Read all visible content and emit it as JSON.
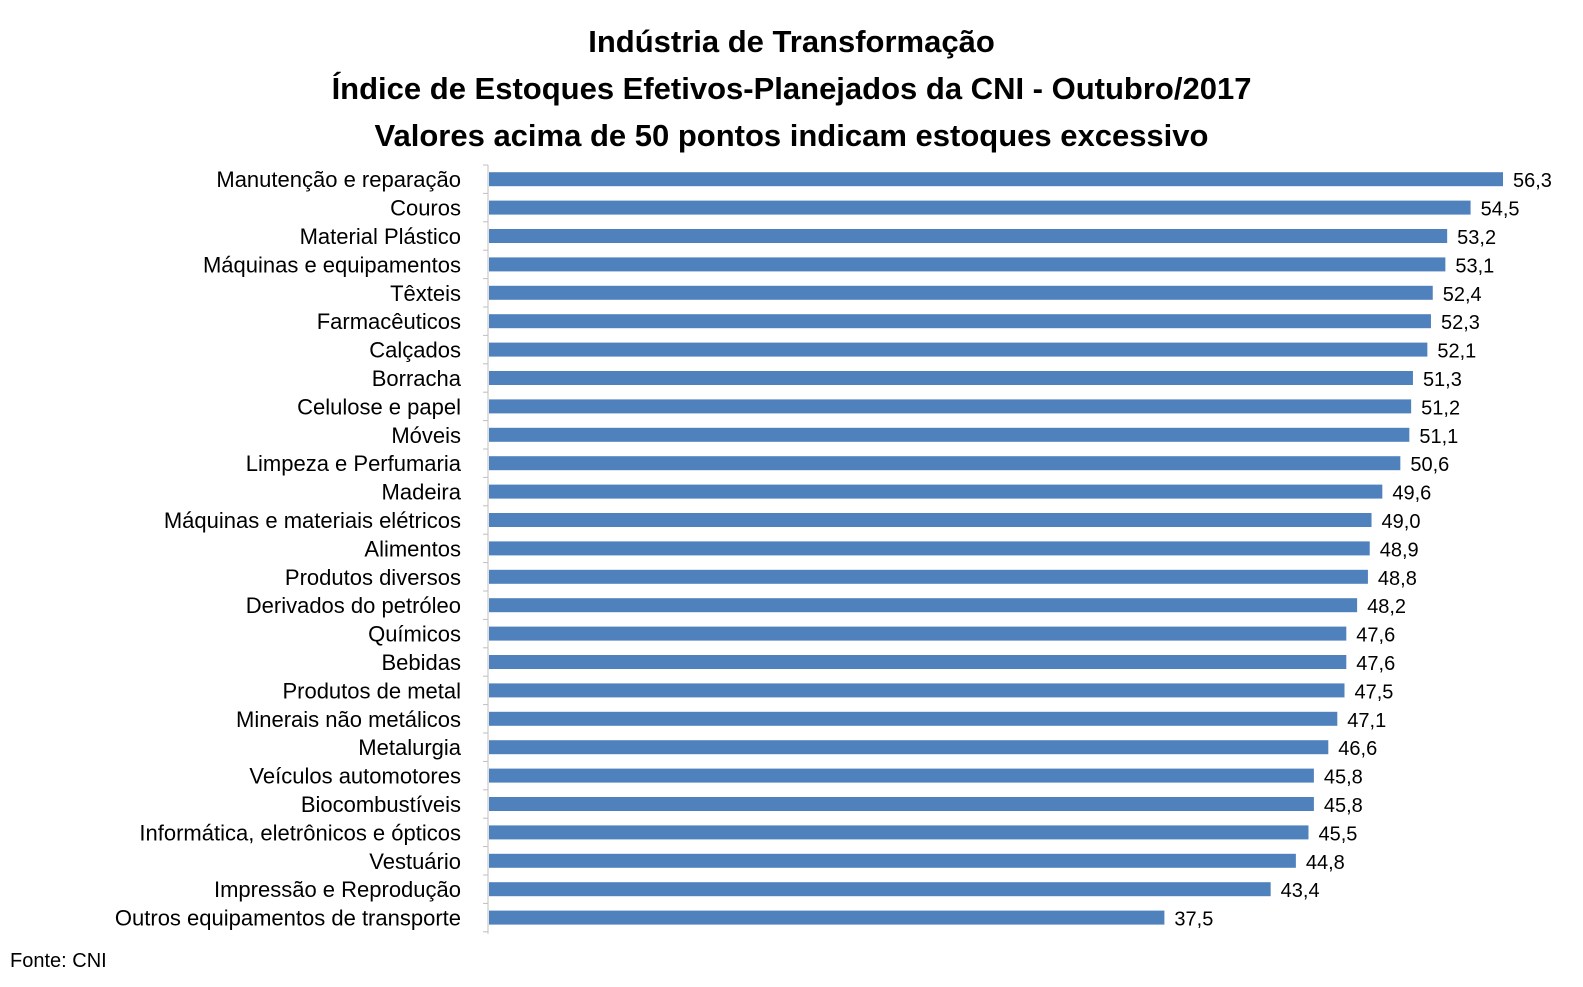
{
  "title_lines": [
    "Indústria de Transformação",
    "Índice de Estoques Efetivos-Planejados da CNI - Outubro/2017",
    "Valores acima de 50 pontos indicam estoques excessivo"
  ],
  "source": "Fonte: CNI",
  "colors": {
    "bar": "#4F81BD",
    "axis": "#BFBFBF",
    "text": "#000000"
  },
  "chart_data": {
    "type": "bar",
    "orientation": "horizontal",
    "title": "Indústria de Transformação / Índice de Estoques Efetivos-Planejados da CNI - Outubro/2017 / Valores acima de 50 pontos indicam estoques excessivo",
    "xlabel": "",
    "ylabel": "",
    "grid": false,
    "legend": "none",
    "xlim": [
      0,
      56.3
    ],
    "categories": [
      "Manutenção e reparação",
      "Couros",
      "Material Plástico",
      "Máquinas e equipamentos",
      "Têxteis",
      "Farmacêuticos",
      "Calçados",
      "Borracha",
      "Celulose e papel",
      "Móveis",
      "Limpeza e Perfumaria",
      "Madeira",
      "Máquinas e materiais elétricos",
      "Alimentos",
      "Produtos diversos",
      "Derivados do petróleo",
      "Químicos",
      "Bebidas",
      "Produtos de metal",
      "Minerais não metálicos",
      "Metalurgia",
      "Veículos automotores",
      "Biocombustíveis",
      "Informática, eletrônicos e ópticos",
      "Vestuário",
      "Impressão e Reprodução",
      "Outros equipamentos de transporte"
    ],
    "values": [
      56.3,
      54.5,
      53.2,
      53.1,
      52.4,
      52.3,
      52.1,
      51.3,
      51.2,
      51.1,
      50.6,
      49.6,
      49.0,
      48.9,
      48.8,
      48.2,
      47.6,
      47.6,
      47.5,
      47.1,
      46.6,
      45.8,
      45.8,
      45.5,
      44.8,
      43.4,
      37.5
    ],
    "data_labels": [
      "56,3",
      "54,5",
      "53,2",
      "53,1",
      "52,4",
      "52,3",
      "52,1",
      "51,3",
      "51,2",
      "51,1",
      "50,6",
      "49,6",
      "49,0",
      "48,9",
      "48,8",
      "48,2",
      "47,6",
      "47,6",
      "47,5",
      "47,1",
      "46,6",
      "45,8",
      "45,8",
      "45,5",
      "44,8",
      "43,4",
      "37,5"
    ]
  }
}
